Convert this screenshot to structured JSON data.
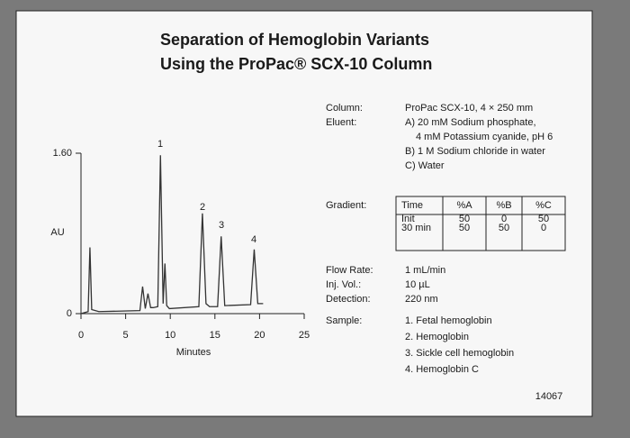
{
  "chart_data": {
    "type": "line",
    "title": [
      "Separation of Hemoglobin Variants",
      "Using the ProPac® SCX-10 Column"
    ],
    "x_label": "Minutes",
    "y_label": "AU",
    "x": [
      0,
      0.8,
      1.0,
      1.2,
      2,
      6.6,
      6.9,
      7.2,
      7.5,
      7.8,
      8.1,
      8.6,
      8.9,
      9.2,
      9.4,
      9.6,
      9.9,
      13.2,
      13.6,
      14.0,
      14.4,
      15.3,
      15.7,
      16.1,
      19.0,
      19.4,
      19.8,
      20.4
    ],
    "values": [
      0,
      0.02,
      0.66,
      0.04,
      0.02,
      0.03,
      0.27,
      0.05,
      0.2,
      0.06,
      0.06,
      0.07,
      1.58,
      0.1,
      0.5,
      0.08,
      0.05,
      0.07,
      1.0,
      0.1,
      0.07,
      0.07,
      0.77,
      0.08,
      0.09,
      0.64,
      0.1,
      0.1
    ],
    "color": "#333333",
    "xlim": [
      0,
      25
    ],
    "xticks": [
      0,
      5,
      10,
      15,
      20,
      25
    ],
    "ylim": [
      0,
      1.6
    ],
    "yticks": [
      0,
      {
        "value": 1.6,
        "label": "1.60"
      }
    ],
    "peak_labels": [
      "1",
      "2",
      "3",
      "4"
    ]
  },
  "conditions": [
    {
      "label": "Column:",
      "lines": [
        "ProPac SCX-10, 4 × 250 mm"
      ]
    },
    {
      "label": "Eluent:",
      "lines": [
        "A) 20 mM Sodium phosphate,",
        "4 mM Potassium cyanide, pH 6",
        "B) 1 M Sodium chloride in water",
        "C) Water"
      ]
    },
    {
      "label": "Gradient:",
      "table": {
        "header": [
          "Time",
          "%A",
          "%B",
          "%C"
        ],
        "rows": [
          [
            "Init",
            "50",
            "0",
            "50"
          ],
          [
            "30 min",
            "50",
            "50",
            "0"
          ]
        ]
      }
    },
    {
      "label": "Flow Rate:",
      "lines": [
        "1 mL/min"
      ]
    },
    {
      "label": "Inj. Vol.:",
      "lines": [
        "10 µL"
      ]
    },
    {
      "label": "Detection:",
      "lines": [
        "220 nm"
      ]
    },
    {
      "label": "Sample:",
      "lines": [
        "1. Fetal hemoglobin",
        "2. Hemoglobin",
        "3. Sickle cell hemoglobin",
        "4. Hemoglobin C"
      ]
    }
  ],
  "figure_number": "14067"
}
